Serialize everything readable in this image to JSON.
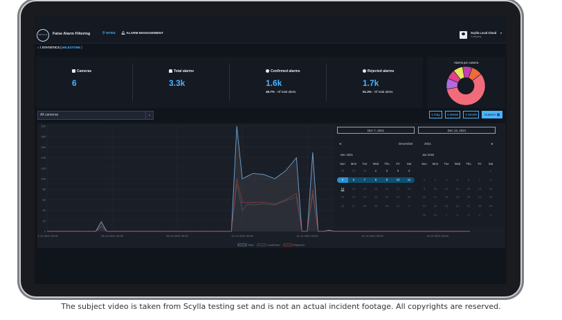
{
  "app": {
    "title": "False Alarm Filtering",
    "logo_text": "SCYLLA",
    "nav": {
      "sites": "SITES",
      "alarm_management": "ALARM MANAGEMENT"
    },
    "user": {
      "name": "Scylla Local Cloud",
      "company": "Company"
    }
  },
  "breadcrumb": {
    "statistics": "STATISTICS",
    "separator": "|",
    "current": "MILESTONE",
    "end": "|"
  },
  "stats": {
    "cameras": {
      "label": "Cameras",
      "value": "6"
    },
    "total_alarms": {
      "label": "Total alarms",
      "value": "3.3k"
    },
    "confirmed": {
      "label": "Confirmed alarms",
      "value": "1.6k",
      "pct": "48.7%",
      "pct_note": "- Of total alerts"
    },
    "rejected": {
      "label": "Rejected alarms",
      "value": "1.7k",
      "pct": "51.3%",
      "pct_note": "- Of total alerts"
    }
  },
  "alarms_per_camera": {
    "title": "Alarms per camera",
    "slices": [
      {
        "value": 58,
        "color": "#f26b7a"
      },
      {
        "value": 9,
        "color": "#b06be0"
      },
      {
        "value": 8,
        "color": "#e0418c"
      },
      {
        "value": 8,
        "color": "#e7e85a"
      },
      {
        "value": 8,
        "color": "#c03fae"
      },
      {
        "value": 9,
        "color": "#f06a3c"
      }
    ]
  },
  "filters": {
    "camera_select": "All cameras",
    "ranges": [
      "1 Day",
      "1 Week",
      "1 Month",
      "Custom"
    ],
    "active_range": "Custom"
  },
  "calendar": {
    "from": "Dec 7, 2021",
    "to": "Dec 13, 2021",
    "header_month": "December",
    "header_year": "2021",
    "left_month": "Dec 2021",
    "right_month": "Jan 2022",
    "weekdays": [
      "Sun",
      "Mon",
      "Tue",
      "Wed",
      "Thu",
      "Fri",
      "Sat"
    ],
    "left_days": [
      "28",
      "29",
      "30",
      "1",
      "2",
      "3",
      "4",
      "5",
      "6",
      "7",
      "8",
      "9",
      "10",
      "11",
      "12",
      "13",
      "14",
      "15",
      "16",
      "17",
      "18",
      "19",
      "20",
      "21",
      "22",
      "23",
      "24",
      "25",
      "26",
      "27",
      "28",
      "29",
      "30",
      "31",
      "1"
    ],
    "right_days": [
      "",
      "",
      "",
      "",
      "",
      "",
      "1",
      "2",
      "3",
      "4",
      "5",
      "6",
      "7",
      "8",
      "9",
      "10",
      "11",
      "12",
      "13",
      "14",
      "15",
      "16",
      "17",
      "18",
      "19",
      "20",
      "21",
      "22",
      "23",
      "24",
      "25",
      "26",
      "27",
      "28",
      "29",
      "30",
      "31",
      "1",
      "2",
      "3",
      "4",
      "5"
    ]
  },
  "chart_data": {
    "type": "line",
    "x_tick_labels": [
      "07-12-2021 00:00",
      "08-12-2021 00:00",
      "09-12-2021 00:00",
      "10-12-2021 00:00",
      "11-12-2021 00:00",
      "12-12-2021 00:00",
      "13-12-2021 00:00"
    ],
    "y_tick_labels": [
      "0",
      "20",
      "40",
      "60",
      "80",
      "100",
      "120",
      "140",
      "160",
      "180",
      "200"
    ],
    "ylim": [
      0,
      200
    ],
    "x": [
      "07-12 00:00",
      "07-12 12:00",
      "07-12 18:00",
      "07-12 20:00",
      "07-12 22:00",
      "08-12 12:00",
      "09-12 12:00",
      "09-12 20:00",
      "09-12 22:00",
      "10-12 00:00",
      "10-12 02:00",
      "10-12 04:00",
      "10-12 08:00",
      "10-12 12:00",
      "10-12 16:00",
      "10-12 20:00",
      "10-12 22:00",
      "11-12 00:00",
      "11-12 02:00",
      "11-12 04:00",
      "11-12 06:00",
      "11-12 08:00",
      "11-12 10:00",
      "12-12 00:00",
      "13-12 00:00",
      "13-12 12:00"
    ],
    "series": [
      {
        "name": "Total",
        "color": "#6fa6d6",
        "values": [
          0,
          0,
          0,
          18,
          0,
          0,
          0,
          0,
          200,
          100,
          105,
          110,
          108,
          100,
          115,
          140,
          0,
          0,
          150,
          0,
          0,
          2,
          0,
          0,
          0,
          0
        ]
      },
      {
        "name": "Confirmed",
        "color": "#5b6778",
        "values": [
          0,
          0,
          0,
          10,
          0,
          0,
          0,
          0,
          90,
          40,
          52,
          50,
          52,
          50,
          58,
          65,
          0,
          0,
          70,
          0,
          0,
          1,
          0,
          0,
          0,
          0
        ]
      },
      {
        "name": "Rejected",
        "color": "#c9413f",
        "values": [
          0,
          0,
          0,
          10,
          0,
          0,
          0,
          0,
          100,
          55,
          55,
          55,
          55,
          52,
          60,
          72,
          0,
          0,
          78,
          0,
          0,
          1,
          0,
          0,
          0,
          0
        ]
      }
    ],
    "legend": [
      "Total",
      "Confirmed",
      "Rejected"
    ]
  }
}
